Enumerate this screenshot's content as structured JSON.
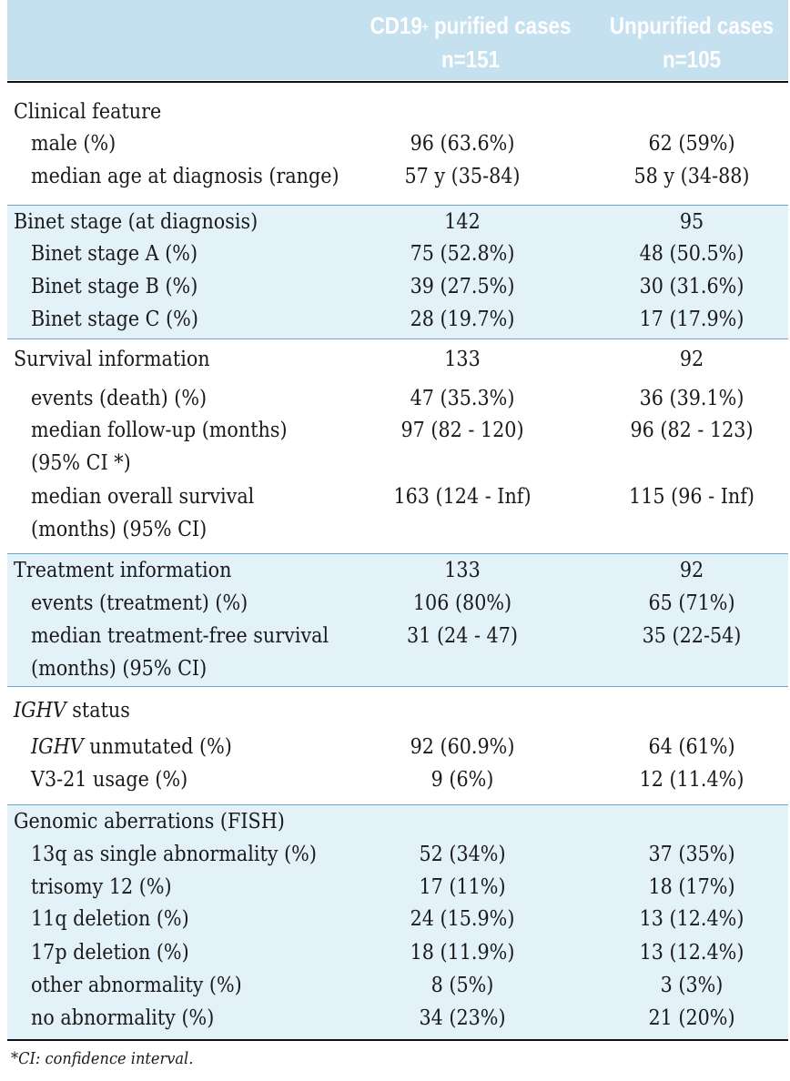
{
  "header": {
    "col1_line1_a": "CD19",
    "col1_sup": "+",
    "col1_line1_b": " purified cases",
    "col1_line2": "n=151",
    "col2_line1": "Unpurified cases",
    "col2_line2": "n=105",
    "background_color": "#c5e0ee"
  },
  "sections": {
    "clinical": {
      "title": "Clinical feature",
      "male": {
        "label": "male (%)",
        "v1": "96 (63.6%)",
        "v2": "62 (59%)"
      },
      "age": {
        "label": "median age at diagnosis (range)",
        "v1": "57 y (35-84)",
        "v2": "58 y (34-88)"
      }
    },
    "binet": {
      "title": "Binet stage (at diagnosis)",
      "v1": "142",
      "v2": "95",
      "a": {
        "label": "Binet stage A (%)",
        "v1": "75 (52.8%)",
        "v2": "48 (50.5%)"
      },
      "b": {
        "label": "Binet stage B (%)",
        "v1": "39 (27.5%)",
        "v2": "30 (31.6%)"
      },
      "c": {
        "label": "Binet stage C (%)",
        "v1": "28 (19.7%)",
        "v2": "17 (17.9%)"
      }
    },
    "survival": {
      "title": "Survival information",
      "v1": "133",
      "v2": "92",
      "events": {
        "label": "events (death) (%)",
        "v1": "47 (35.3%)",
        "v2": "36 (39.1%)"
      },
      "followup": {
        "label": "median follow-up (months)",
        "label2": "(95% CI *)",
        "v1": "97 (82 - 120)",
        "v2": "96 (82 - 123)"
      },
      "overall": {
        "label": "median overall survival",
        "label2": "(months) (95% CI)",
        "v1": "163 (124 - Inf)",
        "v2": "115 (96 - Inf)"
      }
    },
    "treatment": {
      "title": "Treatment information",
      "v1": "133",
      "v2": "92",
      "events": {
        "label": "events (treatment) (%)",
        "v1": "106 (80%)",
        "v2": "65 (71%)"
      },
      "tfs": {
        "label": "median treatment-free survival",
        "label2": "(months) (95% CI)",
        "v1": "31 (24 - 47)",
        "v2": "35 (22-54)"
      }
    },
    "ighv": {
      "title_italic": "IGHV",
      "title_rest": " status",
      "unmutated": {
        "label_italic": "IGHV",
        "label_rest": " unmutated (%)",
        "v1": "92 (60.9%)",
        "v2": "64 (61%)"
      },
      "v321": {
        "label": "V3-21 usage (%)",
        "v1": "9 (6%)",
        "v2": "12 (11.4%)"
      }
    },
    "genomic": {
      "title": "Genomic aberrations (FISH)",
      "q13": {
        "label": "13q as single abnormality (%)",
        "v1": "52 (34%)",
        "v2": "37 (35%)"
      },
      "tri12": {
        "label": "trisomy 12 (%)",
        "v1": "17 (11%)",
        "v2": "18 (17%)"
      },
      "q11": {
        "label": "11q deletion (%)",
        "v1": "24 (15.9%)",
        "v2": "13 (12.4%)"
      },
      "p17": {
        "label": "17p deletion (%)",
        "v1": "18 (11.9%)",
        "v2": "13 (12.4%)"
      },
      "other": {
        "label": "other abnormality (%)",
        "v1": "8 (5%)",
        "v2": "3 (3%)"
      },
      "none": {
        "label": "no abnormality (%)",
        "v1": "34 (23%)",
        "v2": "21 (20%)"
      }
    }
  },
  "footnote": "*CI: confidence interval.",
  "colors": {
    "shade": "#e3f1f8",
    "rule": "#6aa8cc"
  }
}
